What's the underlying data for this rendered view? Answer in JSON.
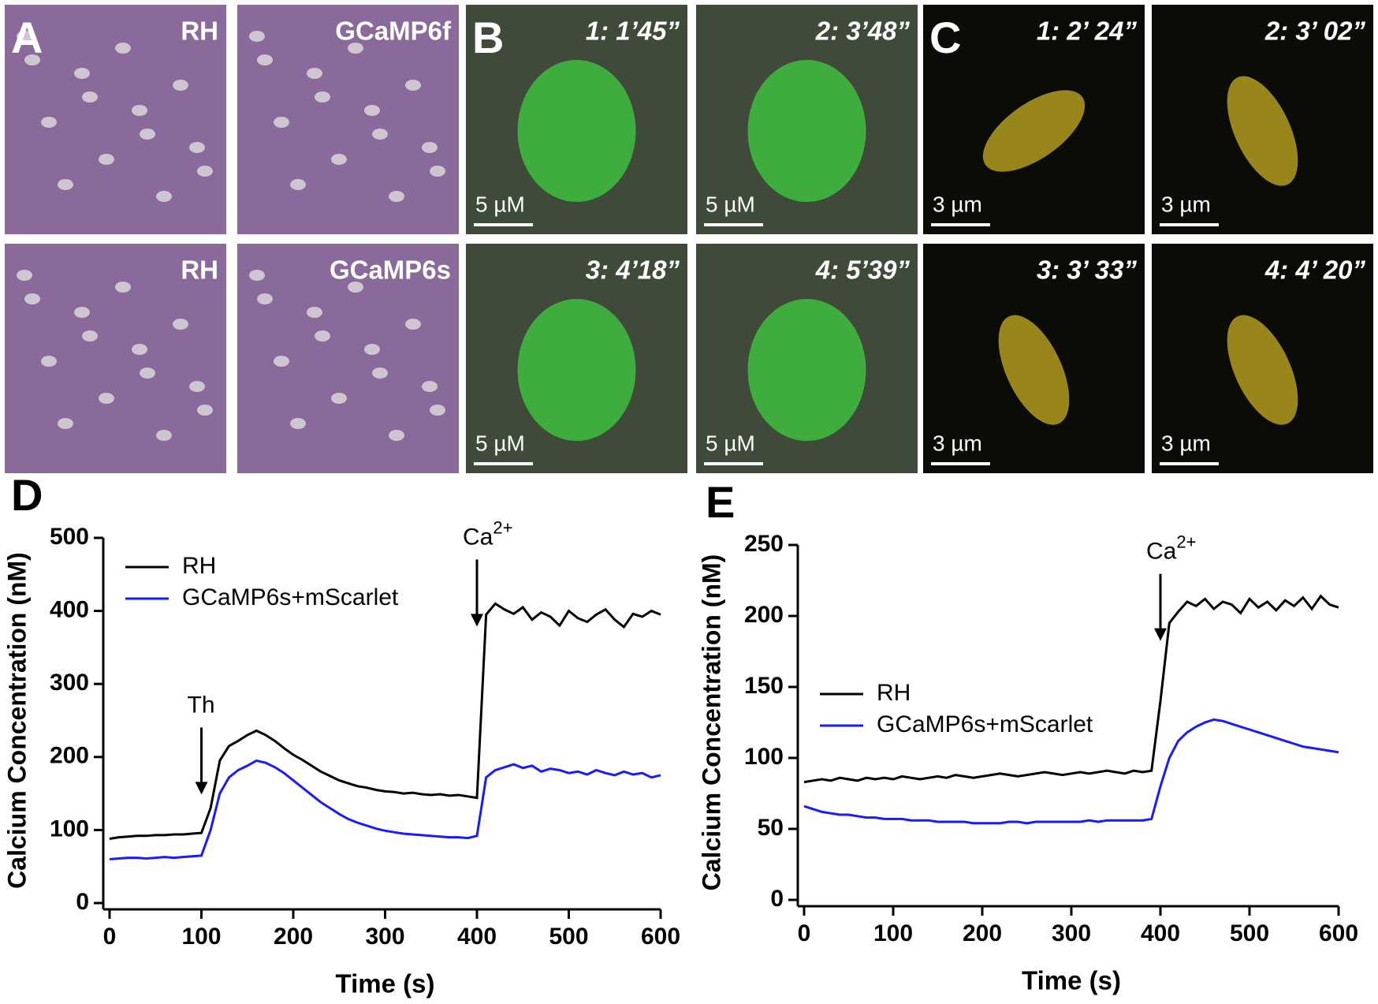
{
  "panels": [
    {
      "label": "A",
      "images": [
        {
          "caption": "RH"
        },
        {
          "caption": "GCaMP6f"
        },
        {
          "caption": "RH"
        },
        {
          "caption": "GCaMP6s"
        }
      ]
    },
    {
      "label": "B",
      "images": [
        {
          "caption": "1: 1’45”",
          "scale_bar": "5 µM"
        },
        {
          "caption": "2: 3’48”",
          "scale_bar": "5 µM"
        },
        {
          "caption": "3: 4’18”",
          "scale_bar": "5 µM"
        },
        {
          "caption": "4: 5’39”",
          "scale_bar": "5 µM"
        }
      ]
    },
    {
      "label": "C",
      "images": [
        {
          "caption": "1: 2’ 24”",
          "scale_bar": "3 µm"
        },
        {
          "caption": "2: 3’ 02”",
          "scale_bar": "3 µm"
        },
        {
          "caption": "3: 3’ 33”",
          "scale_bar": "3 µm"
        },
        {
          "caption": "4: 4’ 20”",
          "scale_bar": "3 µm"
        }
      ]
    }
  ],
  "chart_data": [
    {
      "type": "line",
      "label": "D",
      "xlabel": "Time (s)",
      "ylabel": "Calcium Concentration (nM)",
      "legend": "upper left",
      "xlim": [
        0,
        600
      ],
      "ylim": [
        0,
        500
      ],
      "xticks": [
        0,
        100,
        200,
        300,
        400,
        500,
        600
      ],
      "yticks": [
        0,
        100,
        200,
        300,
        400,
        500
      ],
      "x": [
        0,
        10,
        20,
        30,
        40,
        50,
        60,
        70,
        80,
        90,
        100,
        110,
        120,
        130,
        140,
        150,
        160,
        170,
        180,
        190,
        200,
        210,
        220,
        230,
        240,
        250,
        260,
        270,
        280,
        290,
        300,
        310,
        320,
        330,
        340,
        350,
        360,
        370,
        380,
        390,
        400,
        410,
        420,
        430,
        440,
        450,
        460,
        470,
        480,
        490,
        500,
        510,
        520,
        530,
        540,
        550,
        560,
        570,
        580,
        590,
        600
      ],
      "series": [
        {
          "name": "RH",
          "color": "#000000",
          "values": [
            88,
            90,
            91,
            92,
            92,
            93,
            93,
            94,
            94,
            95,
            96,
            130,
            195,
            215,
            222,
            230,
            236,
            230,
            222,
            212,
            203,
            196,
            188,
            180,
            174,
            168,
            164,
            160,
            158,
            155,
            153,
            152,
            150,
            151,
            149,
            148,
            149,
            147,
            148,
            146,
            144,
            395,
            410,
            402,
            396,
            405,
            388,
            398,
            392,
            380,
            400,
            390,
            385,
            395,
            402,
            388,
            378,
            396,
            392,
            400,
            395
          ]
        },
        {
          "name": "GCaMP6s+mScarlet",
          "color": "#1a1aff",
          "values": [
            60,
            61,
            62,
            62,
            61,
            62,
            63,
            62,
            63,
            64,
            65,
            100,
            150,
            172,
            182,
            188,
            195,
            192,
            186,
            178,
            168,
            158,
            148,
            138,
            130,
            122,
            115,
            110,
            106,
            102,
            99,
            97,
            95,
            94,
            93,
            92,
            91,
            90,
            90,
            89,
            92,
            172,
            182,
            186,
            190,
            185,
            188,
            180,
            184,
            182,
            178,
            180,
            176,
            182,
            178,
            175,
            180,
            176,
            178,
            172,
            175
          ]
        }
      ],
      "annotations": [
        {
          "text": "Th",
          "x": 100,
          "y": 140
        },
        {
          "text": "Ca",
          "sup": "2+",
          "x": 400,
          "y": 370
        }
      ]
    },
    {
      "type": "line",
      "label": "E",
      "xlabel": "Time (s)",
      "ylabel": "Calcium Concentration (nM)",
      "legend": "center left",
      "xlim": [
        0,
        600
      ],
      "ylim": [
        0,
        250
      ],
      "xticks": [
        0,
        100,
        200,
        300,
        400,
        500,
        600
      ],
      "yticks": [
        0,
        50,
        100,
        150,
        200,
        250
      ],
      "x": [
        0,
        10,
        20,
        30,
        40,
        50,
        60,
        70,
        80,
        90,
        100,
        110,
        120,
        130,
        140,
        150,
        160,
        170,
        180,
        190,
        200,
        210,
        220,
        230,
        240,
        250,
        260,
        270,
        280,
        290,
        300,
        310,
        320,
        330,
        340,
        350,
        360,
        370,
        380,
        390,
        400,
        410,
        420,
        430,
        440,
        450,
        460,
        470,
        480,
        490,
        500,
        510,
        520,
        530,
        540,
        550,
        560,
        570,
        580,
        590,
        600
      ],
      "series": [
        {
          "name": "RH",
          "color": "#000000",
          "values": [
            83,
            84,
            85,
            84,
            86,
            85,
            84,
            86,
            85,
            86,
            85,
            87,
            86,
            85,
            86,
            87,
            86,
            88,
            87,
            86,
            87,
            88,
            89,
            88,
            87,
            88,
            89,
            90,
            89,
            88,
            89,
            90,
            89,
            90,
            91,
            90,
            89,
            91,
            90,
            91,
            140,
            195,
            203,
            210,
            207,
            212,
            205,
            210,
            208,
            202,
            212,
            206,
            210,
            204,
            211,
            207,
            213,
            205,
            214,
            208,
            206
          ]
        },
        {
          "name": "GCaMP6s+mScarlet",
          "color": "#1a1aff",
          "values": [
            66,
            64,
            62,
            61,
            60,
            60,
            59,
            58,
            58,
            57,
            57,
            57,
            56,
            56,
            56,
            55,
            55,
            55,
            55,
            54,
            54,
            54,
            54,
            55,
            55,
            54,
            55,
            55,
            55,
            55,
            55,
            55,
            56,
            55,
            56,
            56,
            56,
            56,
            56,
            57,
            80,
            100,
            112,
            118,
            122,
            125,
            127,
            126,
            124,
            122,
            120,
            118,
            116,
            114,
            112,
            110,
            108,
            107,
            106,
            105,
            104
          ]
        }
      ],
      "annotations": [
        {
          "text": "Ca",
          "sup": "2+",
          "x": 400,
          "y": 178
        }
      ]
    }
  ]
}
